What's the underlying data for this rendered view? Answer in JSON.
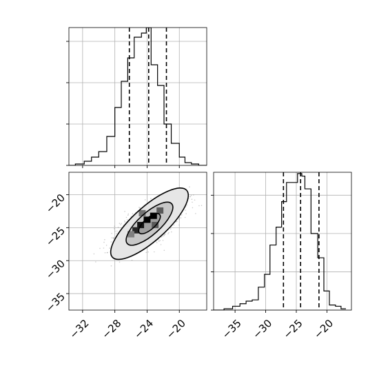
{
  "chart_data": {
    "type": "corner",
    "panels": [
      {
        "id": "hist_x",
        "type": "histogram",
        "xlim": [
          -33.7,
          -16.6
        ],
        "ylim": [
          0,
          1.0
        ],
        "xticks": [
          -32,
          -28,
          -24,
          -20
        ],
        "xtick_labels": [],
        "yticks": [
          0.0,
          0.3,
          0.6,
          0.9
        ],
        "ytick_labels": [],
        "bin_edges": [
          -33.7,
          -32.9,
          -31.8,
          -30.9,
          -30.0,
          -29.0,
          -28.0,
          -27.2,
          -26.4,
          -25.6,
          -24.7,
          -24.1,
          -23.5,
          -22.7,
          -21.9,
          -21.0,
          -20.0,
          -19.3,
          -18.5,
          -17.6,
          -16.6
        ],
        "counts": [
          0.0,
          0.01,
          0.03,
          0.06,
          0.1,
          0.21,
          0.42,
          0.61,
          0.78,
          0.93,
          0.96,
          1.0,
          0.73,
          0.58,
          0.3,
          0.16,
          0.06,
          0.02,
          0.01,
          0.0
        ],
        "quantiles": [
          -26.2,
          -23.8,
          -21.6
        ],
        "grid": true
      },
      {
        "id": "joint",
        "type": "2d-density",
        "xlim": [
          -33.7,
          -16.6
        ],
        "ylim": [
          -37.5,
          -16.6
        ],
        "xticks": [
          -32,
          -28,
          -24,
          -20
        ],
        "xtick_labels": [
          "−32",
          "−28",
          "−24",
          "−20"
        ],
        "yticks": [
          -20,
          -25,
          -30,
          -35
        ],
        "ytick_labels": [
          "−20",
          "−25",
          "−30",
          "−35"
        ],
        "center": [
          -23.7,
          -24.4
        ],
        "cells": [
          {
            "x": -23.2,
            "y": -23.2,
            "shade": 0.0
          },
          {
            "x": -24.0,
            "y": -23.8,
            "shade": 0.0
          },
          {
            "x": -24.8,
            "y": -24.6,
            "shade": 0.08
          },
          {
            "x": -25.4,
            "y": -25.4,
            "shade": 0.15
          },
          {
            "x": -23.0,
            "y": -24.6,
            "shade": 0.35
          },
          {
            "x": -22.4,
            "y": -22.4,
            "shade": 0.35
          },
          {
            "x": -24.6,
            "y": -22.8,
            "shade": 0.45
          },
          {
            "x": -26.0,
            "y": -26.0,
            "shade": 0.5
          }
        ],
        "contours": [
          {
            "level": 0.39,
            "rx": 1.7,
            "ry": 0.85,
            "fill": 0.62
          },
          {
            "level": 0.86,
            "rx": 3.7,
            "ry": 1.65,
            "fill": 0.78
          },
          {
            "level": 0.99,
            "rx": 6.2,
            "ry": 2.55,
            "fill": 0.9
          }
        ],
        "contour_angle_deg": 42,
        "scatter_n": 1800,
        "grid": true
      },
      {
        "id": "hist_y",
        "type": "histogram",
        "xlim": [
          -38.5,
          -16.0
        ],
        "ylim": [
          0,
          1.08
        ],
        "xticks": [
          -35,
          -30,
          -25,
          -20
        ],
        "xtick_labels": [
          "−35",
          "−30",
          "−25",
          "−20"
        ],
        "yticks": [
          0.0,
          0.3,
          0.6,
          0.9
        ],
        "ytick_labels": [],
        "bin_edges": [
          -38.5,
          -36.8,
          -35.4,
          -34.2,
          -33.2,
          -32.2,
          -31.2,
          -30.2,
          -29.3,
          -28.3,
          -27.4,
          -26.6,
          -25.7,
          -24.8,
          -24.1,
          -23.6,
          -22.6,
          -21.5,
          -20.5,
          -19.6,
          -18.6,
          -17.7,
          -16.9
        ],
        "counts": [
          0.0,
          0.01,
          0.03,
          0.05,
          0.07,
          0.08,
          0.18,
          0.28,
          0.51,
          0.65,
          0.85,
          1.0,
          1.0,
          1.07,
          1.05,
          0.95,
          0.6,
          0.41,
          0.15,
          0.04,
          0.03,
          0.01
        ],
        "quantiles": [
          -27.1,
          -24.3,
          -21.3
        ],
        "grid": true
      }
    ]
  }
}
